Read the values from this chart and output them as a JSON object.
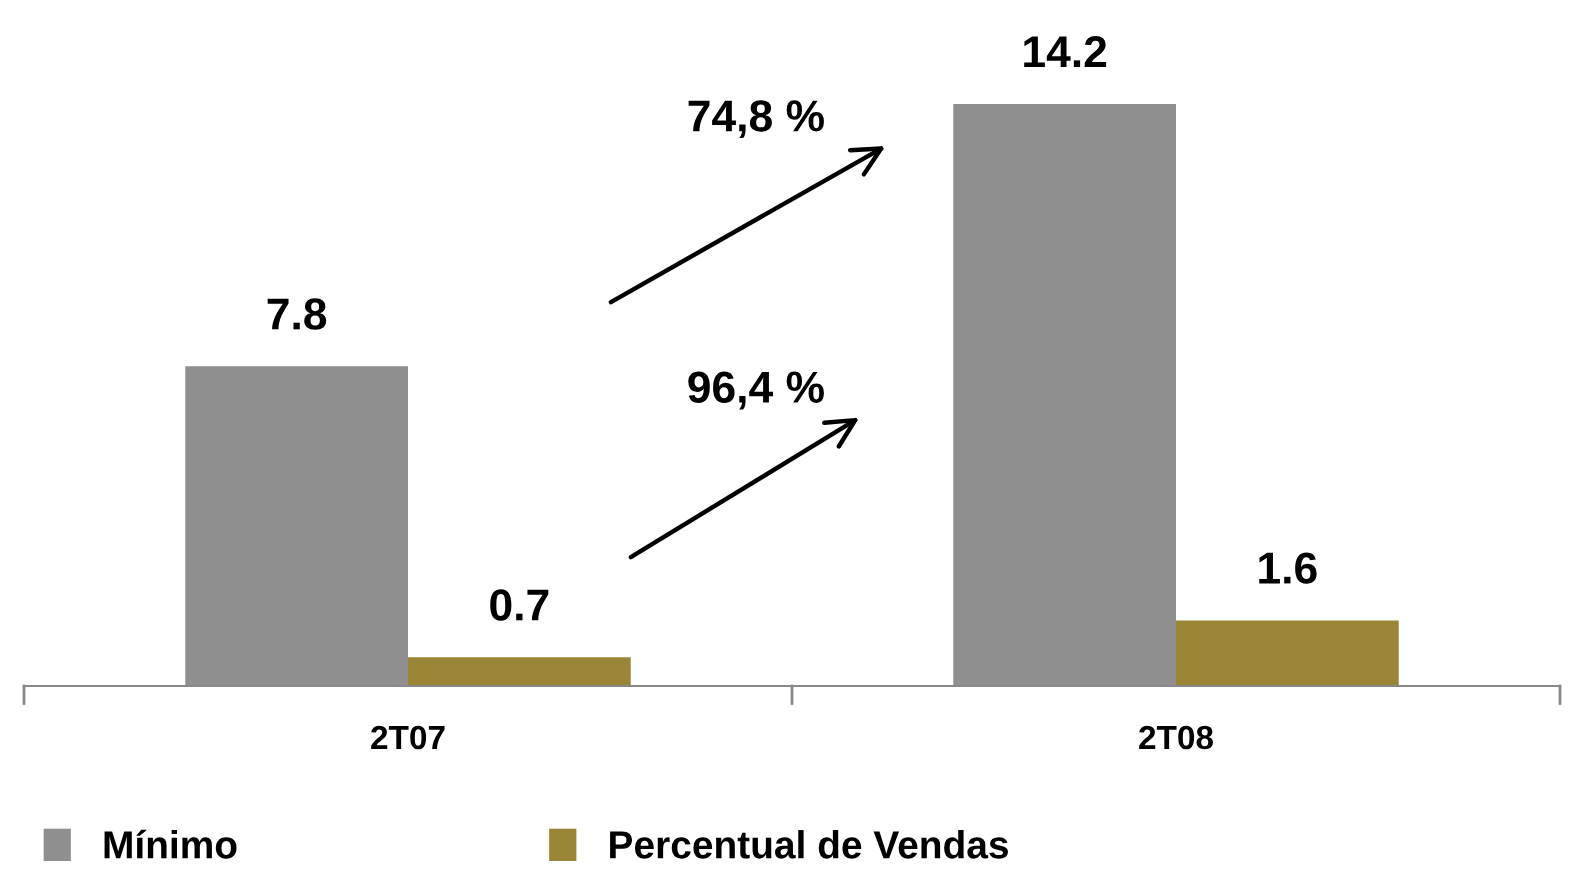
{
  "chart_data": {
    "type": "bar",
    "categories": [
      "2T07",
      "2T08"
    ],
    "series": [
      {
        "name": "Mínimo",
        "color": "#8f8f8f",
        "values": [
          7.8,
          14.2
        ]
      },
      {
        "name": "Percentual de Vendas",
        "color": "#9a8435",
        "values": [
          0.7,
          1.6
        ]
      }
    ],
    "data_labels": true,
    "legend": "bottom",
    "grid": false,
    "annotations": [
      "74,8 %",
      "96,4 %"
    ]
  }
}
